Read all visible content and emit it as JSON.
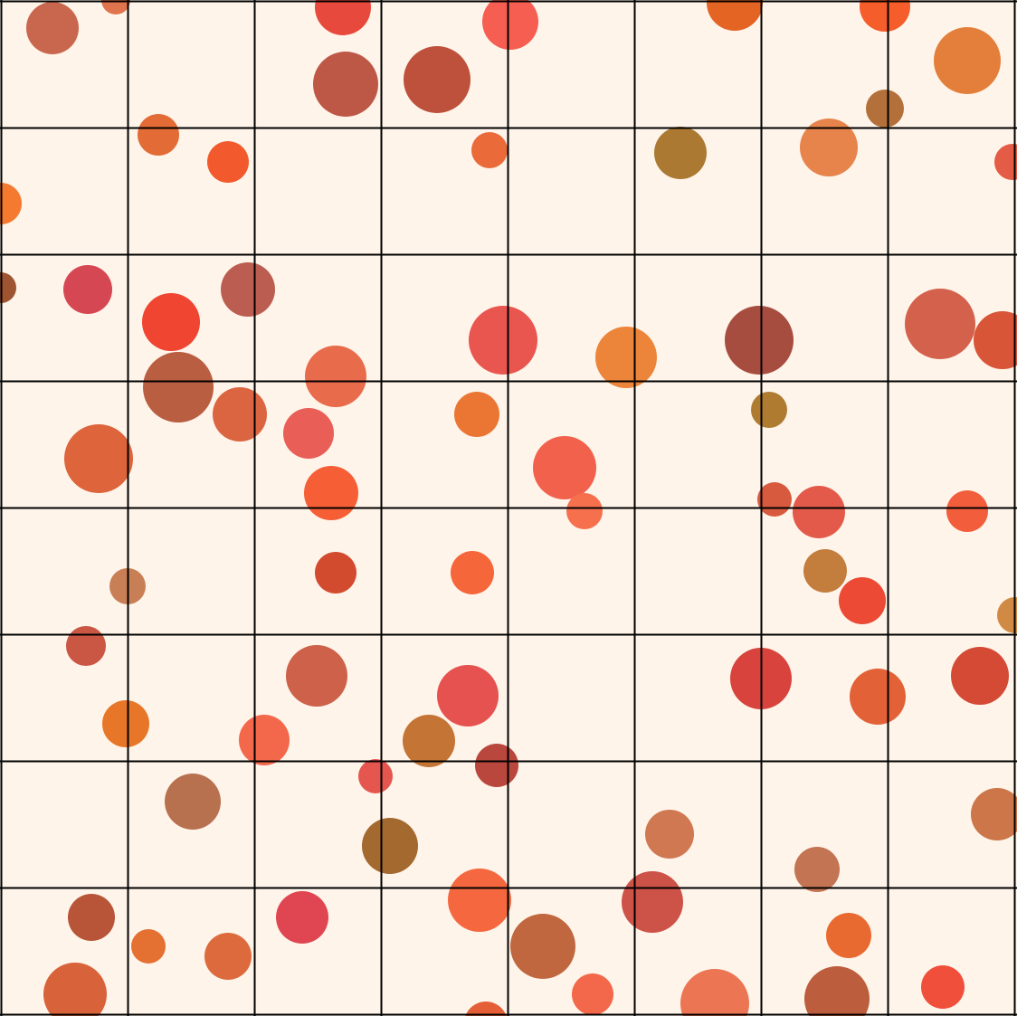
{
  "background_color": "#fef4ea",
  "grid": {
    "line_color": "#000000",
    "rows": 8,
    "columns": 8
  },
  "dots": [
    {
      "id": 1,
      "color": "#c9674e"
    },
    {
      "id": 2,
      "color": "#e0744d"
    },
    {
      "id": 3,
      "color": "#e8493d"
    },
    {
      "id": 4,
      "color": "#f75e52"
    },
    {
      "id": 5,
      "color": "#e46424"
    },
    {
      "id": 6,
      "color": "#f55d2a"
    },
    {
      "id": 7,
      "color": "#e47f3b"
    },
    {
      "id": 8,
      "color": "#be5846"
    },
    {
      "id": 9,
      "color": "#bd513b"
    },
    {
      "id": 10,
      "color": "#b3703a"
    },
    {
      "id": 11,
      "color": "#e36b35"
    },
    {
      "id": 12,
      "color": "#f25a2d"
    },
    {
      "id": 13,
      "color": "#ea6a3a"
    },
    {
      "id": 14,
      "color": "#ac7933"
    },
    {
      "id": 15,
      "color": "#e6844c"
    },
    {
      "id": 16,
      "color": "#e45c45"
    },
    {
      "id": 17,
      "color": "#f57a2f"
    },
    {
      "id": 18,
      "color": "#9e5430"
    },
    {
      "id": 19,
      "color": "#d64754"
    },
    {
      "id": 20,
      "color": "#f04530"
    },
    {
      "id": 21,
      "color": "#bb5e51"
    },
    {
      "id": 22,
      "color": "#e95650"
    },
    {
      "id": 23,
      "color": "#ec843a"
    },
    {
      "id": 24,
      "color": "#a64d40"
    },
    {
      "id": 25,
      "color": "#d4614c"
    },
    {
      "id": 26,
      "color": "#d85538"
    },
    {
      "id": 27,
      "color": "#b95e41"
    },
    {
      "id": 28,
      "color": "#db6541"
    },
    {
      "id": 29,
      "color": "#e86b4b"
    },
    {
      "id": 30,
      "color": "#e95e56"
    },
    {
      "id": 31,
      "color": "#eb7634"
    },
    {
      "id": 32,
      "color": "#ae7b31"
    },
    {
      "id": 33,
      "color": "#dd643b"
    },
    {
      "id": 34,
      "color": "#f65e36"
    },
    {
      "id": 35,
      "color": "#f2614b"
    },
    {
      "id": 36,
      "color": "#f6704e"
    },
    {
      "id": 37,
      "color": "#d75a3e"
    },
    {
      "id": 38,
      "color": "#e35a4a"
    },
    {
      "id": 39,
      "color": "#f25e3c"
    },
    {
      "id": 40,
      "color": "#c97f56"
    },
    {
      "id": 41,
      "color": "#d24b2f"
    },
    {
      "id": 42,
      "color": "#f5663a"
    },
    {
      "id": 43,
      "color": "#c37d3c"
    },
    {
      "id": 44,
      "color": "#ec4a35"
    },
    {
      "id": 45,
      "color": "#d18a44"
    },
    {
      "id": 46,
      "color": "#ca5644"
    },
    {
      "id": 47,
      "color": "#cd6149"
    },
    {
      "id": 48,
      "color": "#e65250"
    },
    {
      "id": 49,
      "color": "#d8433e"
    },
    {
      "id": 50,
      "color": "#d44a35"
    },
    {
      "id": 51,
      "color": "#e87629"
    },
    {
      "id": 52,
      "color": "#e36136"
    },
    {
      "id": 53,
      "color": "#f3684b"
    },
    {
      "id": 54,
      "color": "#c47434"
    },
    {
      "id": 55,
      "color": "#b9473d"
    },
    {
      "id": 56,
      "color": "#b8714e"
    },
    {
      "id": 57,
      "color": "#e5564e"
    },
    {
      "id": 58,
      "color": "#a4692f"
    },
    {
      "id": 59,
      "color": "#d07851"
    },
    {
      "id": 60,
      "color": "#cc7649"
    },
    {
      "id": 61,
      "color": "#c37452"
    },
    {
      "id": 62,
      "color": "#b85437"
    },
    {
      "id": 63,
      "color": "#e04652"
    },
    {
      "id": 64,
      "color": "#e47032"
    },
    {
      "id": 65,
      "color": "#f5683f"
    },
    {
      "id": 66,
      "color": "#dd6a3c"
    },
    {
      "id": 67,
      "color": "#cd5248"
    },
    {
      "id": 68,
      "color": "#c0673f"
    },
    {
      "id": 69,
      "color": "#e86a31"
    },
    {
      "id": 70,
      "color": "#d8623a"
    },
    {
      "id": 71,
      "color": "#f3684a"
    },
    {
      "id": 72,
      "color": "#bc5d3d"
    },
    {
      "id": 73,
      "color": "#ec7553"
    },
    {
      "id": 74,
      "color": "#f04f3c"
    },
    {
      "id": 75,
      "color": "#e45f38"
    }
  ]
}
